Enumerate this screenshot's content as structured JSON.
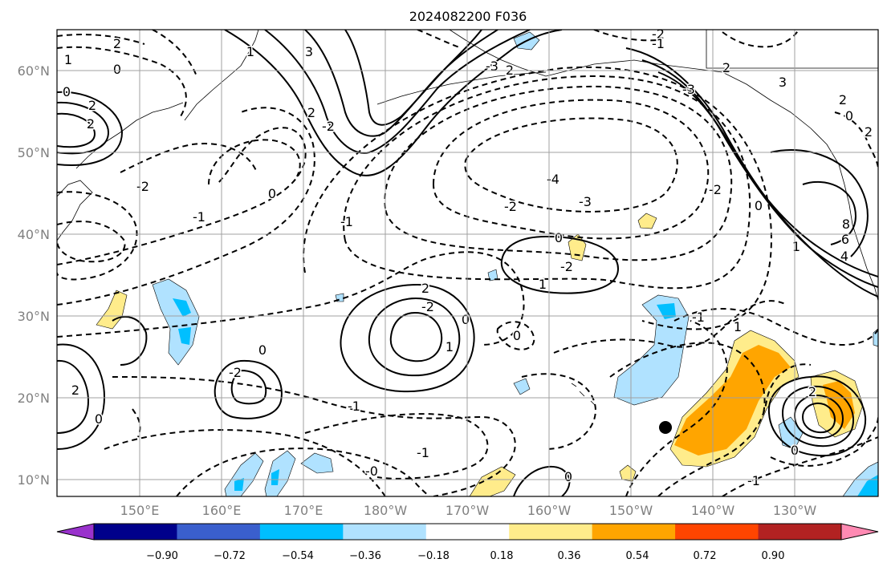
{
  "title": "2024082200 F036",
  "lat_labels": [
    "60°N",
    "50°N",
    "40°N",
    "30°N",
    "20°N",
    "10°N"
  ],
  "lon_labels": [
    "150°E",
    "160°E",
    "170°E",
    "180°W",
    "170°W",
    "160°W",
    "150°W",
    "140°W",
    "130°W"
  ],
  "colorbar": {
    "ticks": [
      "−0.90",
      "−0.72",
      "−0.54",
      "−0.36",
      "−0.18",
      "0.18",
      "0.36",
      "0.54",
      "0.72",
      "0.90"
    ],
    "colors": [
      "#9932cc",
      "#00008b",
      "#3a5fcd",
      "#00bfff",
      "#b0e2ff",
      "#ffffff",
      "#ffec8b",
      "#ffa500",
      "#ff4500",
      "#b22222",
      "#ff8ab3"
    ]
  },
  "contour_labels": [
    {
      "text": "2"
    },
    {
      "text": "0"
    },
    {
      "text": "1"
    },
    {
      "text": "2"
    },
    {
      "text": "0"
    },
    {
      "text": "2"
    },
    {
      "text": "3"
    },
    {
      "text": "2"
    },
    {
      "text": "1"
    },
    {
      "text": "-2"
    },
    {
      "text": "2"
    },
    {
      "text": "-3"
    },
    {
      "text": "-2"
    },
    {
      "text": "-1"
    },
    {
      "text": "-2"
    },
    {
      "text": "0"
    },
    {
      "text": "-4"
    },
    {
      "text": "-3"
    },
    {
      "text": "-2"
    },
    {
      "text": "-1"
    },
    {
      "text": "0"
    },
    {
      "text": "-2"
    },
    {
      "text": "1"
    },
    {
      "text": "2"
    },
    {
      "text": "-2"
    },
    {
      "text": "0"
    },
    {
      "text": "1"
    },
    {
      "text": "0"
    },
    {
      "text": "-2"
    },
    {
      "text": "-1"
    },
    {
      "text": "2"
    },
    {
      "text": "0"
    },
    {
      "text": "8"
    },
    {
      "text": "6"
    },
    {
      "text": "4"
    },
    {
      "text": "1"
    },
    {
      "text": "2"
    },
    {
      "text": "0"
    },
    {
      "text": "-1"
    },
    {
      "text": "-0"
    },
    {
      "text": "0"
    },
    {
      "text": "-1"
    },
    {
      "text": "2"
    },
    {
      "text": "0"
    },
    {
      "text": "-3"
    },
    {
      "text": "3"
    },
    {
      "text": "2"
    },
    {
      "text": "0"
    },
    {
      "text": "-2"
    },
    {
      "text": "1"
    },
    {
      "text": "-1"
    },
    {
      "text": "0"
    },
    {
      "text": "-1"
    },
    {
      "text": "2"
    }
  ]
}
